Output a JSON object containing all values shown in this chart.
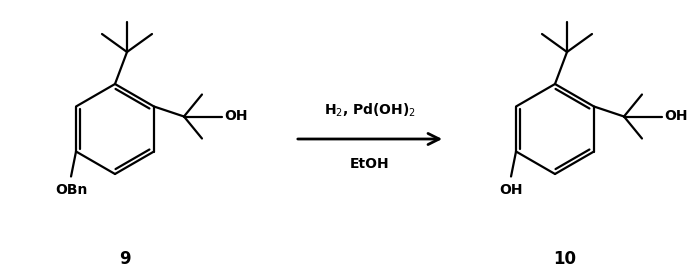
{
  "figure_width": 6.99,
  "figure_height": 2.77,
  "dpi": 100,
  "background": "#ffffff",
  "arrow_label_line1": "H$_2$, Pd(OH)$_2$",
  "arrow_label_line2": "EtOH",
  "compound_left": "9",
  "compound_right": "10",
  "line_color": "#000000",
  "line_width": 1.6,
  "font_size_label": 10,
  "font_size_compound": 12
}
